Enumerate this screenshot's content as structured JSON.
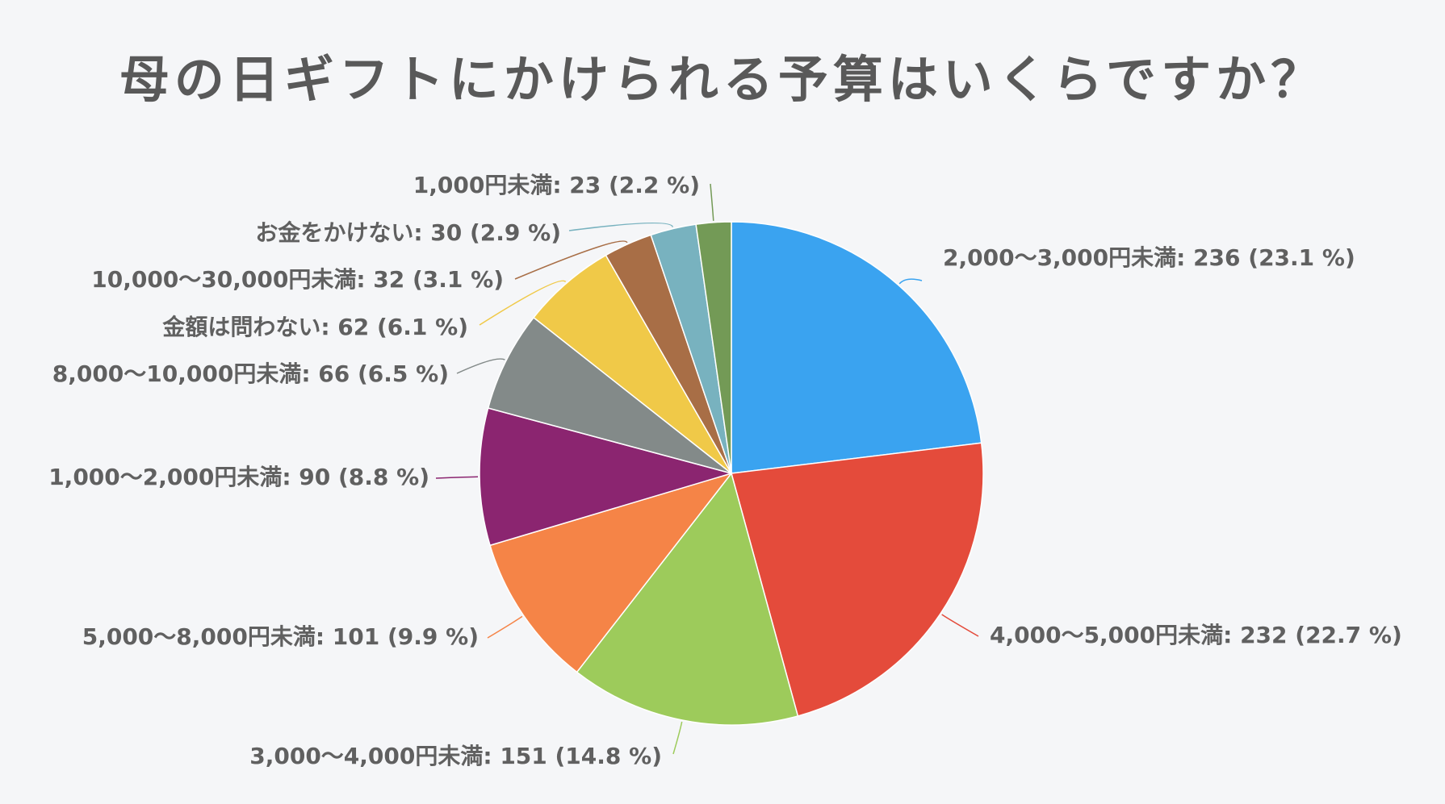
{
  "chart_data": {
    "type": "pie",
    "title": "母の日ギフトにかけられる予算はいくらですか？",
    "start_angle_deg": 0,
    "direction": "clockwise",
    "slices": [
      {
        "label": "2,000〜3,000円未満",
        "value": 236,
        "percent": 23.1,
        "color": "#3aa3f0",
        "text": "2,000〜3,000円未満: 236 (23.1 %)"
      },
      {
        "label": "4,000〜5,000円未満",
        "value": 232,
        "percent": 22.7,
        "color": "#e44b3b",
        "text": "4,000〜5,000円未満: 232 (22.7 %)"
      },
      {
        "label": "3,000〜4,000円未満",
        "value": 151,
        "percent": 14.8,
        "color": "#9dcb5b",
        "text": "3,000〜4,000円未満: 151 (14.8 %)"
      },
      {
        "label": "5,000〜8,000円未満",
        "value": 101,
        "percent": 9.9,
        "color": "#f58447",
        "text": "5,000〜8,000円未満: 101 (9.9 %)"
      },
      {
        "label": "1,000〜2,000円未満",
        "value": 90,
        "percent": 8.8,
        "color": "#8b2570",
        "text": "1,000〜2,000円未満: 90 (8.8 %)"
      },
      {
        "label": "8,000〜10,000円未満",
        "value": 66,
        "percent": 6.5,
        "color": "#838a89",
        "text": "8,000〜10,000円未満: 66 (6.5 %)"
      },
      {
        "label": "金額は問わない",
        "value": 62,
        "percent": 6.1,
        "color": "#f0c948",
        "text": "金額は問わない: 62 (6.1 %)"
      },
      {
        "label": "10,000〜30,000円未満",
        "value": 32,
        "percent": 3.1,
        "color": "#a86e46",
        "text": "10,000〜30,000円未満: 32 (3.1 %)"
      },
      {
        "label": "お金をかけない",
        "value": 30,
        "percent": 2.9,
        "color": "#78b2bf",
        "text": "お金をかけない: 30 (2.9 %)"
      },
      {
        "label": "1,000円未満",
        "value": 23,
        "percent": 2.2,
        "color": "#739a56",
        "text": "1,000円未満: 23 (2.2 %)"
      }
    ]
  }
}
